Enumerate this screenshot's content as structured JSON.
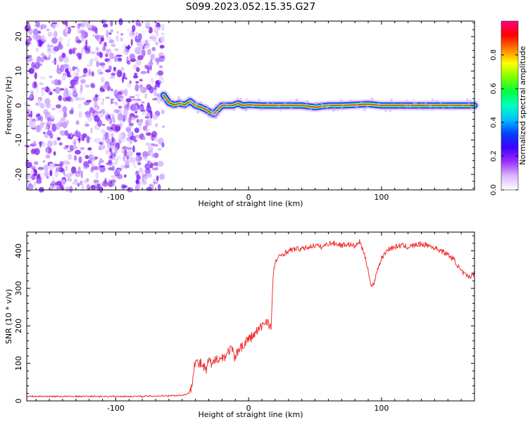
{
  "title": "S099.2023.052.15.35.G27",
  "chart_data": [
    {
      "type": "heatmap",
      "xlabel": "Height of straight line (km)",
      "ylabel": "Frequency (Hz)",
      "xlim": [
        -167,
        170
      ],
      "ylim": [
        -24.5,
        24.5
      ],
      "x_ticks": [
        "-100",
        "0",
        "100"
      ],
      "y_ticks": [
        "-20",
        "-10",
        "0",
        "10",
        "20"
      ],
      "colorbar": {
        "label": "Normalized spectral amplitude",
        "range": [
          0,
          1
        ],
        "ticks": [
          "0.0",
          "0.2",
          "0.4",
          "0.6",
          "0.8"
        ],
        "colors": [
          "#ffffff",
          "#d9b8ff",
          "#9b30ff",
          "#4000ff",
          "#0040ff",
          "#00c0ff",
          "#00ffc0",
          "#00ff40",
          "#80ff00",
          "#ffff00",
          "#ff8000",
          "#ff0000",
          "#ff0080"
        ]
      },
      "noise_region_x": [
        -167,
        -64
      ],
      "signal_trace": {
        "x": [
          -64,
          -60,
          -56,
          -52,
          -48,
          -44,
          -40,
          -36,
          -32,
          -28,
          -26,
          -24,
          -20,
          -16,
          -12,
          -8,
          -4,
          0,
          10,
          20,
          30,
          40,
          50,
          60,
          70,
          80,
          90,
          100,
          110,
          120,
          130,
          140,
          150,
          160,
          170
        ],
        "y": [
          3,
          0.8,
          0.2,
          0.6,
          0.2,
          1.2,
          0,
          -0.5,
          -1.2,
          -2.2,
          -2.5,
          -1.5,
          0,
          0,
          0,
          0.6,
          0,
          0.2,
          0,
          0,
          0,
          0,
          -0.5,
          0,
          0,
          0.2,
          0.4,
          0,
          0,
          0,
          0,
          0,
          0,
          0,
          0
        ]
      }
    },
    {
      "type": "line",
      "xlabel": "Height of straight line (km)",
      "ylabel": "SNR (10 * v/v)",
      "xlim": [
        -167,
        170
      ],
      "ylim": [
        0,
        450
      ],
      "x_ticks": [
        "-100",
        "0",
        "100"
      ],
      "y_ticks": [
        "0",
        "100",
        "200",
        "300",
        "400"
      ],
      "color": "#ee3333",
      "series": {
        "x": [
          -167,
          -120,
          -80,
          -50,
          -45,
          -43,
          -41,
          -40,
          -38,
          -36,
          -34,
          -32,
          -30,
          -28,
          -26,
          -24,
          -22,
          -20,
          -18,
          -16,
          -14,
          -12,
          -10,
          -8,
          -6,
          -4,
          -2,
          0,
          2,
          4,
          6,
          8,
          10,
          12,
          14,
          16,
          17,
          18,
          19,
          20,
          21,
          22,
          25,
          30,
          35,
          40,
          45,
          50,
          55,
          60,
          65,
          70,
          75,
          80,
          84,
          86,
          88,
          90,
          92,
          94,
          96,
          98,
          100,
          105,
          110,
          115,
          120,
          125,
          130,
          135,
          140,
          145,
          150,
          155,
          160,
          165,
          170
        ],
        "y": [
          12,
          12,
          12,
          15,
          20,
          40,
          95,
          110,
          95,
          100,
          90,
          80,
          110,
          95,
          100,
          120,
          110,
          115,
          120,
          125,
          140,
          130,
          110,
          135,
          150,
          140,
          160,
          165,
          170,
          175,
          185,
          190,
          200,
          210,
          215,
          200,
          190,
          300,
          350,
          370,
          375,
          380,
          390,
          400,
          405,
          405,
          410,
          415,
          410,
          420,
          420,
          415,
          418,
          412,
          425,
          400,
          380,
          350,
          305,
          310,
          340,
          360,
          380,
          405,
          410,
          415,
          410,
          415,
          418,
          415,
          408,
          400,
          390,
          375,
          345,
          330,
          340
        ]
      }
    }
  ]
}
